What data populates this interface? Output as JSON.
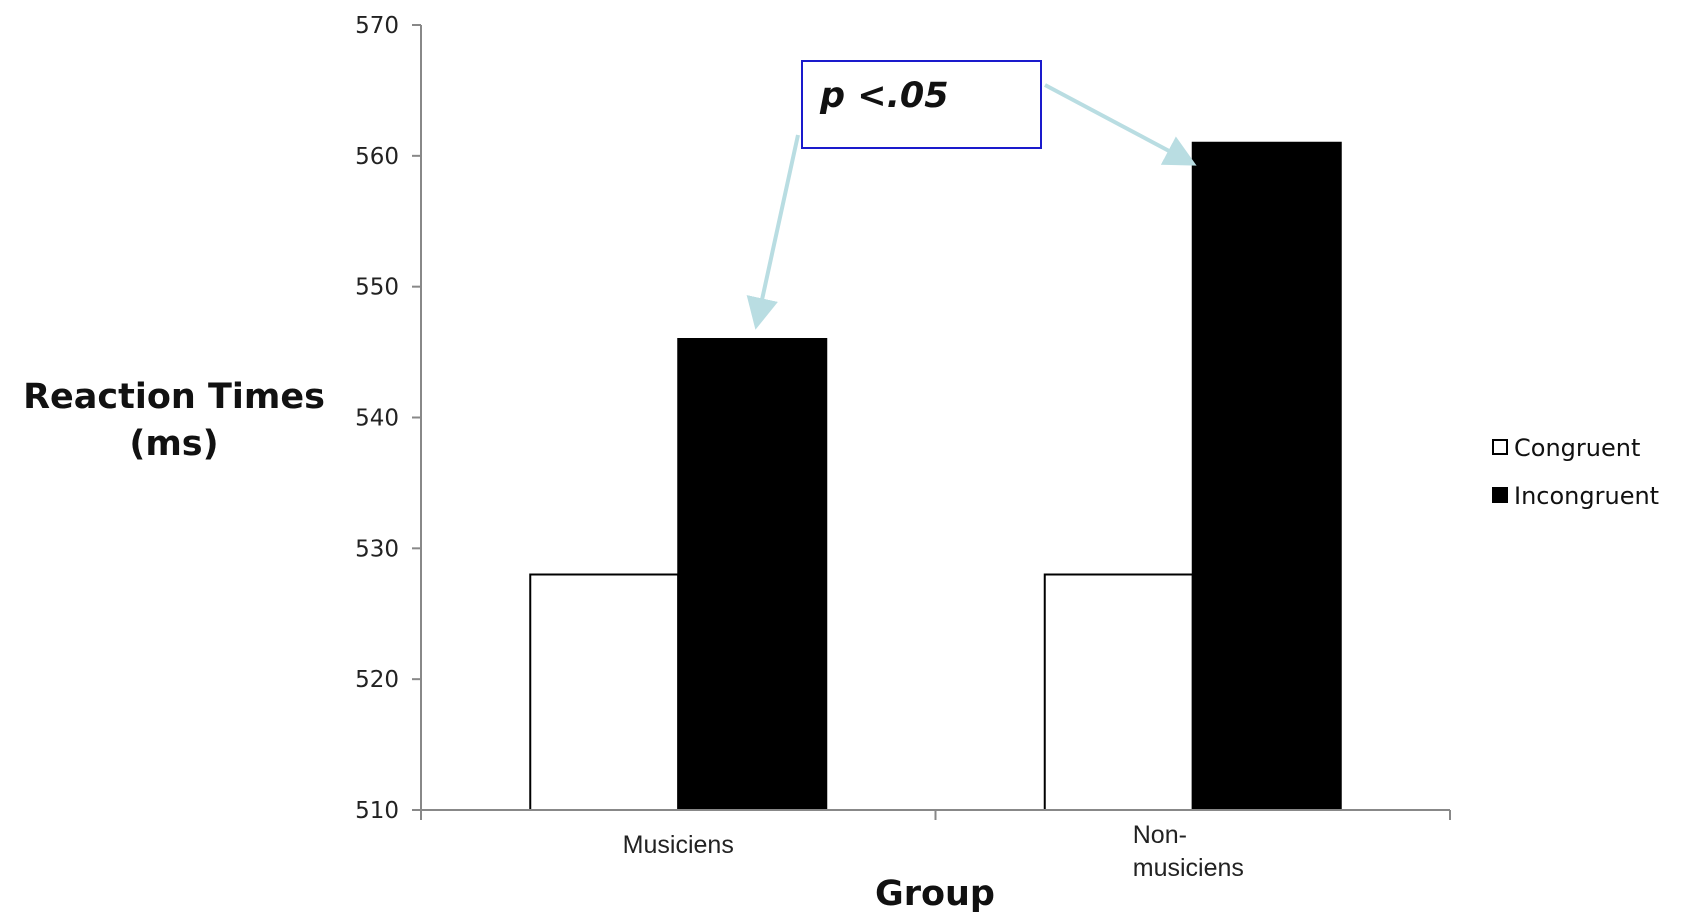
{
  "chart_data": {
    "type": "bar",
    "categories": [
      "Musiciens",
      "Non-musiciens"
    ],
    "category_lines": [
      [
        "Musiciens"
      ],
      [
        "Non-",
        "musiciens"
      ]
    ],
    "series": [
      {
        "name": "Congruent",
        "values": [
          528,
          528
        ],
        "color": "#ffffff"
      },
      {
        "name": "Incongruent",
        "values": [
          546,
          561
        ],
        "color": "#000000"
      }
    ],
    "xlabel": "Group",
    "ylabel_lines": [
      "Reaction Times",
      "(ms)"
    ],
    "ylim": [
      510,
      570
    ],
    "yticks": [
      510,
      520,
      530,
      540,
      550,
      560,
      570
    ],
    "grid": false,
    "legend": "right",
    "annotation": {
      "text": "p <.05",
      "arrow_color": "#b9dde2",
      "box_border": "#1a1acc"
    }
  }
}
